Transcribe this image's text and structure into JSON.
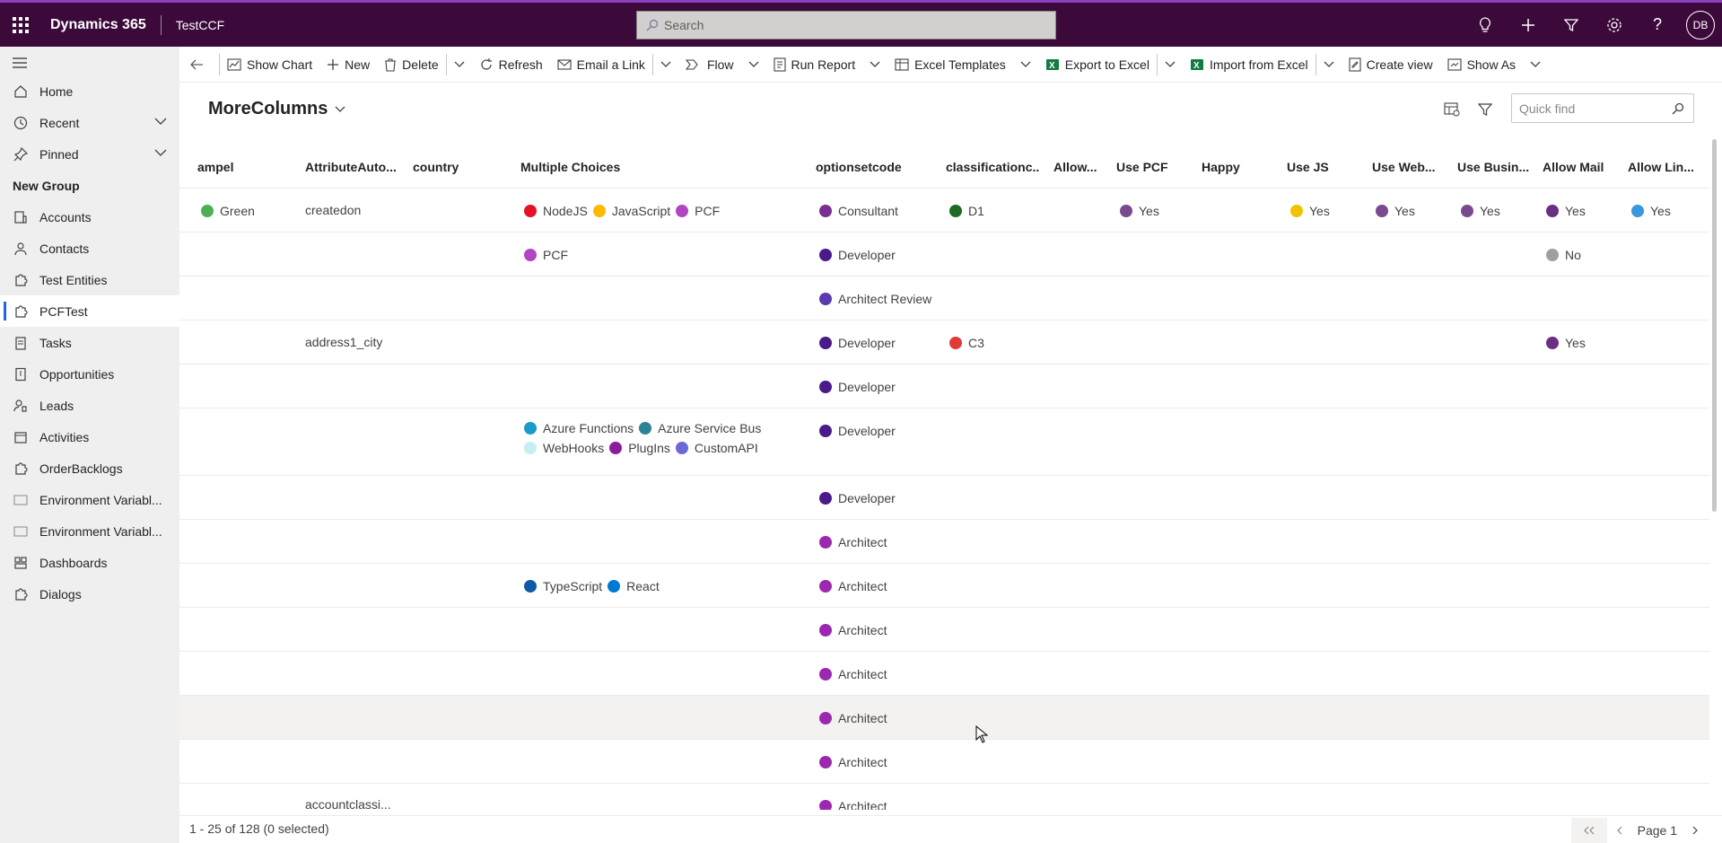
{
  "topbar": {
    "app_title": "Dynamics 365",
    "env_title": "TestCCF",
    "search_placeholder": "Search",
    "avatar_initials": "DB"
  },
  "sidebar": {
    "home": "Home",
    "recent": "Recent",
    "pinned": "Pinned",
    "group": "New Group",
    "items": [
      "Accounts",
      "Contacts",
      "Test Entities",
      "PCFTest",
      "Tasks",
      "Opportunities",
      "Leads",
      "Activities",
      "OrderBacklogs",
      "Environment Variabl...",
      "Environment Variabl...",
      "Dashboards",
      "Dialogs"
    ]
  },
  "commands": {
    "show_chart": "Show Chart",
    "new": "New",
    "delete": "Delete",
    "refresh": "Refresh",
    "email_link": "Email a Link",
    "flow": "Flow",
    "run_report": "Run Report",
    "excel_templates": "Excel Templates",
    "export_excel": "Export to Excel",
    "import_excel": "Import from Excel",
    "create_view": "Create view",
    "show_as": "Show As"
  },
  "view": {
    "title": "MoreColumns",
    "quickfind_placeholder": "Quick find"
  },
  "grid": {
    "columns": [
      "ampel",
      "AttributeAuto...",
      "country",
      "Multiple Choices",
      "optionsetcode",
      "classificationc...",
      "Allow...",
      "Use PCF",
      "Happy",
      "Use JS",
      "Use Web...",
      "Use Busin...",
      "Allow Mail",
      "Allow Lin..."
    ],
    "rows": [
      {
        "ampel": "Green",
        "attr": "createdon",
        "choices": [
          "NodeJS",
          "JavaScript",
          "PCF"
        ],
        "optionset": "Consultant",
        "classification": "D1",
        "usepcf": "Yes",
        "usejs": "Yes",
        "useweb": "Yes",
        "usebusin": "Yes",
        "allowmail": "Yes",
        "allowlin": "Yes"
      },
      {
        "choices": [
          "PCF"
        ],
        "optionset": "Developer",
        "allowmail": "No"
      },
      {
        "optionset": "Architect Review"
      },
      {
        "attr": "address1_city",
        "optionset": "Developer",
        "classification": "C3",
        "allowmail": "Yes"
      },
      {
        "optionset": "Developer"
      },
      {
        "choices": [
          "Azure Functions",
          "Azure Service Bus",
          "WebHooks",
          "PlugIns",
          "CustomAPI"
        ],
        "optionset": "Developer"
      },
      {
        "optionset": "Developer"
      },
      {
        "optionset": "Architect"
      },
      {
        "choices": [
          "TypeScript",
          "React"
        ],
        "optionset": "Architect"
      },
      {
        "optionset": "Architect"
      },
      {
        "optionset": "Architect"
      },
      {
        "optionset": "Architect"
      },
      {
        "optionset": "Architect"
      },
      {
        "attr": "accountclassi...",
        "optionset": "Architect"
      }
    ]
  },
  "colors": {
    "Green": "#4caf50",
    "NodeJS": "#e81123",
    "JavaScript": "#ffb900",
    "PCF": "#b146c2",
    "Azure Functions": "#1a9bc8",
    "Azure Service Bus": "#2a8394",
    "WebHooks": "#c7eef3",
    "PlugIns": "#8a1c9e",
    "CustomAPI": "#6b69d6",
    "TypeScript": "#0f5aa8",
    "React": "#0078d4",
    "Consultant": "#7a2e91",
    "Developer": "#4a1a8a",
    "Architect Review": "#5b3aaf",
    "Architect": "#9c27b0",
    "D1": "#1e6b24",
    "C3": "#e03a3a",
    "usepcf": "#7a4a8e",
    "usejs": "#f2c200",
    "useweb": "#7a4a8e",
    "usebusin": "#7a4a8e",
    "allowmail_yes": "#6a2e82",
    "allowmail_no": "#a19f9d",
    "allowlin": "#3a96dd"
  },
  "footer": {
    "count": "1 - 25 of 128 (0 selected)",
    "page": "Page 1"
  }
}
